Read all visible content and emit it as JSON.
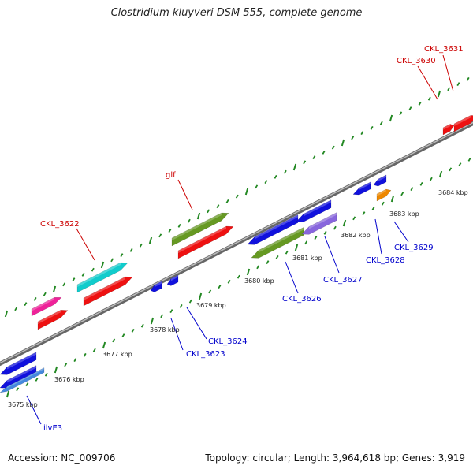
{
  "title": "Clostridium kluyveri DSM 555, complete genome",
  "footer": {
    "accession": "Accession: NC_009706",
    "summary": "Topology: circular; Length: 3,964,618 bp; Genes: 3,919"
  },
  "ticks": [
    "3675 kbp",
    "3676 kbp",
    "3677 kbp",
    "3678 kbp",
    "3679 kbp",
    "3680 kbp",
    "3681 kbp",
    "3682 kbp",
    "3683 kbp",
    "3684 kbp"
  ],
  "labels": [
    {
      "text": "CKL_3631",
      "color": "#cc0000"
    },
    {
      "text": "CKL_3630",
      "color": "#cc0000"
    },
    {
      "text": "glf",
      "color": "#cc0000"
    },
    {
      "text": "CKL_3622",
      "color": "#cc0000"
    },
    {
      "text": "CKL_3629",
      "color": "#0000cc"
    },
    {
      "text": "CKL_3628",
      "color": "#0000cc"
    },
    {
      "text": "CKL_3627",
      "color": "#0000cc"
    },
    {
      "text": "CKL_3626",
      "color": "#0000cc"
    },
    {
      "text": "CKL_3624",
      "color": "#0000cc"
    },
    {
      "text": "CKL_3623",
      "color": "#0000cc"
    },
    {
      "text": "ilvE3",
      "color": "#0000cc"
    }
  ],
  "colors": {
    "red": "#ee1111",
    "blue": "#1111dd",
    "cyan": "#11cccc",
    "magenta": "#ee2299",
    "olive": "#669922",
    "lavender": "#8866dd",
    "lightblue": "#4488dd",
    "orange": "#ee8800",
    "tick": "#228822",
    "backbone": "#888888"
  }
}
